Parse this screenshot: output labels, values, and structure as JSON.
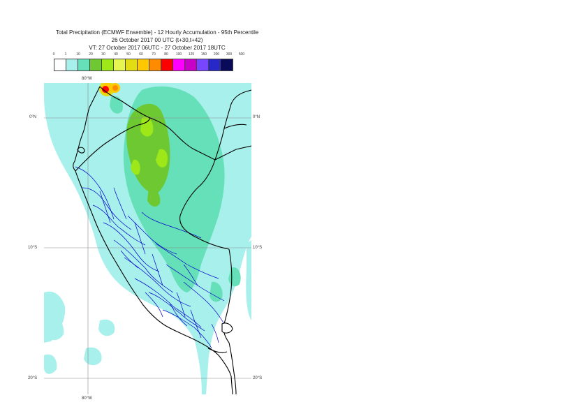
{
  "title": {
    "line1": "Total Precipitation (ECMWF Ensemble) - 12 Hourly Accumulation - 95th Percentile",
    "line2": "26 October 2017 00 UTC (t+30,t+42)",
    "line3": "VT: 27 October 2017 06UTC - 27 October 2017 18UTC"
  },
  "legend": {
    "labels": [
      "0",
      "1",
      "10",
      "20",
      "30",
      "40",
      "50",
      "60",
      "70",
      "80",
      "100",
      "125",
      "150",
      "200",
      "300",
      "500"
    ],
    "colors": [
      "#ffffff",
      "#a8f0ec",
      "#66e0b8",
      "#6ec832",
      "#9ee81a",
      "#e6f550",
      "#e1dc14",
      "#ffc800",
      "#ff8c00",
      "#ff0000",
      "#ff00ff",
      "#c800c8",
      "#7846ff",
      "#2828c8",
      "#0a0a5a"
    ]
  },
  "map": {
    "lon_label_top": "80°W",
    "lon_label_bottom": "80°W",
    "lat_labels_left": [
      "0°N",
      "10°S",
      "20°S"
    ],
    "lat_labels_right": [
      "0°N",
      "10°S",
      "20°S"
    ]
  }
}
